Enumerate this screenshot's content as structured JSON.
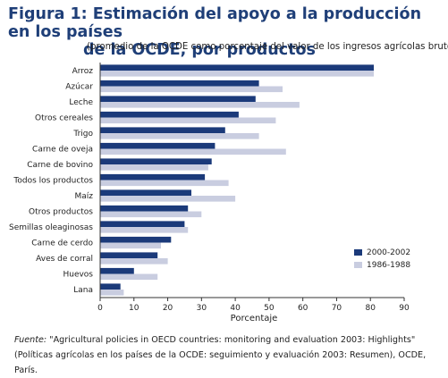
{
  "figure": {
    "title_line1": "Figura 1: Estimación del apoyo a la producción en los países",
    "title_line2": "de la OCDE, por productos",
    "subtitle": "(promedio de la OCDE como porcentaje del valor de los ingresos agrícolas brutos)"
  },
  "source": {
    "label": "Fuente:",
    "line1": "\"Agricultural policies in OECD countries: monitoring and evaluation 2003: Highlights\"",
    "line2": "(Políticas agrícolas en los países de la OCDE: seguimiento y evaluación 2003: Resumen), OCDE,  París."
  },
  "colors": {
    "series_2000_2002": "#1b3a7a",
    "series_1986_1988": "#c9cde0",
    "axis": "#333333",
    "title": "#1f3f78"
  },
  "chart_data": {
    "type": "bar",
    "orientation": "horizontal",
    "title": "Figura 1: Estimación del apoyo a la producción en los países de la OCDE, por productos",
    "subtitle": "(promedio de la OCDE como porcentaje del valor de los ingresos agrícolas brutos)",
    "xlabel": "Porcentaje",
    "ylabel": "",
    "xlim": [
      0,
      90
    ],
    "xticks": [
      0,
      10,
      20,
      30,
      40,
      50,
      60,
      70,
      80,
      90
    ],
    "grid": false,
    "legend_position": "bottom-right",
    "categories": [
      "Arroz",
      "Azúcar",
      "Leche",
      "Otros cereales",
      "Trigo",
      "Carne de oveja",
      "Carne de bovino",
      "Todos los productos",
      "Maíz",
      "Otros productos",
      "Semillas oleaginosas",
      "Carne de cerdo",
      "Aves de corral",
      "Huevos",
      "Lana"
    ],
    "series": [
      {
        "name": "2000-2002",
        "values": [
          81,
          47,
          46,
          41,
          37,
          34,
          33,
          31,
          27,
          26,
          25,
          21,
          17,
          10,
          6
        ]
      },
      {
        "name": "1986-1988",
        "values": [
          81,
          54,
          59,
          52,
          47,
          55,
          32,
          38,
          40,
          30,
          26,
          18,
          20,
          17,
          7
        ]
      }
    ]
  }
}
